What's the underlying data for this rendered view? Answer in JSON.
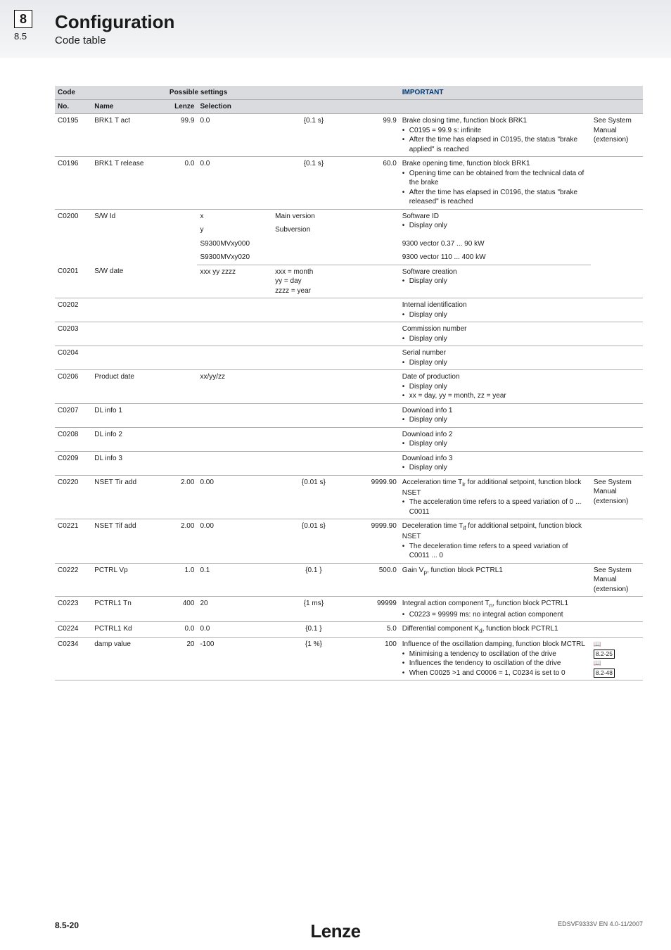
{
  "header": {
    "chapter_num": "8",
    "section_num": "8.5",
    "title": "Configuration",
    "subtitle": "Code table"
  },
  "columns": {
    "code": "Code",
    "no": "No.",
    "name": "Name",
    "possible": "Possible settings",
    "lenze": "Lenze",
    "selection": "Selection",
    "important": "IMPORTANT"
  },
  "rows": [
    {
      "no": "C0195",
      "name": "BRK1 T act",
      "lenze": "99.9",
      "s1": "0.0",
      "s2": "{0.1 s}",
      "s3": "99.9",
      "imp_lead": "Brake closing time, function block BRK1",
      "imp_items": [
        "C0195 = 99.9 s: infinite",
        "After the time has elapsed in C0195, the status \"brake applied\" is reached"
      ],
      "ref": "See System Manual (extension)"
    },
    {
      "no": "C0196",
      "name": "BRK1 T release",
      "lenze": "0.0",
      "s1": "0.0",
      "s2": "{0.1 s}",
      "s3": "60.0",
      "imp_lead": "Brake opening time, function block BRK1",
      "imp_items": [
        "Opening time can be obtained from the technical data of the brake",
        "After the time has elapsed in C0196, the status \"brake released\" is reached"
      ],
      "ref": ""
    }
  ],
  "c0200": {
    "no": "C0200",
    "name": "S/W Id",
    "line1_a": "x",
    "line1_b": "Main version",
    "line2_a": "y",
    "line2_b": "Subversion",
    "line3": "S9300MVxy000",
    "line4": "S9300MVxy020",
    "imp1": "Software ID",
    "imp1b": "Display only",
    "imp3": "9300 vector 0.37 ... 90 kW",
    "imp4": "9300 vector 110 ... 400 kW"
  },
  "c0201": {
    "no": "C0201",
    "name": "S/W date",
    "s1": "xxx yy zzzz",
    "s2": "xxx = month\nyy = day\nzzzz = year",
    "imp": "Software creation",
    "impb": "Display only"
  },
  "simple": [
    {
      "no": "C0202",
      "imp": "Internal identification",
      "impb": "Display only"
    },
    {
      "no": "C0203",
      "imp": "Commission number",
      "impb": "Display only"
    },
    {
      "no": "C0204",
      "imp": "Serial number",
      "impb": "Display only"
    }
  ],
  "c0206": {
    "no": "C0206",
    "name": "Product date",
    "s1": "xx/yy/zz",
    "imp": "Date of production",
    "imp_items": [
      "Display only",
      "xx = day, yy = month, zz = year"
    ]
  },
  "dlinfo": [
    {
      "no": "C0207",
      "name": "DL info 1",
      "imp": "Download info 1",
      "impb": "Display only"
    },
    {
      "no": "C0208",
      "name": "DL info 2",
      "imp": "Download info 2",
      "impb": "Display only"
    },
    {
      "no": "C0209",
      "name": "DL info 3",
      "imp": "Download info 3",
      "impb": "Display only"
    }
  ],
  "c0220": {
    "no": "C0220",
    "name": "NSET Tir add",
    "lenze": "2.00",
    "s1": "0.00",
    "s2": "{0.01 s}",
    "s3": "9999.90",
    "imp": "Acceleration time T",
    "imp_sub": "ir",
    "imp_tail": " for additional setpoint, function block NSET",
    "imp_items": [
      "The acceleration time refers to a speed variation of 0 ... C0011"
    ],
    "ref": "See System Manual (extension)"
  },
  "c0221": {
    "no": "C0221",
    "name": "NSET Tif add",
    "lenze": "2.00",
    "s1": "0.00",
    "s2": "{0.01 s}",
    "s3": "9999.90",
    "imp": "Deceleration time T",
    "imp_sub": "if",
    "imp_tail": " for additional setpoint, function block NSET",
    "imp_items": [
      "The deceleration time refers to a speed variation of C0011 ... 0"
    ]
  },
  "c0222": {
    "no": "C0222",
    "name": "PCTRL Vp",
    "lenze": "1.0",
    "s1": "0.1",
    "s2": "{0.1 }",
    "s3": "500.0",
    "imp": "Gain V",
    "imp_sub": "p",
    "imp_tail": ", function block PCTRL1",
    "ref": "See System Manual (extension)"
  },
  "c0223": {
    "no": "C0223",
    "name": "PCTRL1 Tn",
    "lenze": "400",
    "s1": "20",
    "s2": "{1 ms}",
    "s3": "99999",
    "imp": "Integral action component T",
    "imp_sub": "n",
    "imp_tail": ", function block PCTRL1",
    "imp_items": [
      "C0223 = 99999 ms: no integral action component"
    ]
  },
  "c0224": {
    "no": "C0224",
    "name": "PCTRL1 Kd",
    "lenze": "0.0",
    "s1": "0.0",
    "s2": "{0.1 }",
    "s3": "5.0",
    "imp": "Differential component K",
    "imp_sub": "d",
    "imp_tail": ", function block PCTRL1"
  },
  "c0234": {
    "no": "C0234",
    "name": "damp value",
    "lenze": "20",
    "s1": "-100",
    "s2": "{1 %}",
    "s3": "100",
    "imp": "Influence of the oscillation damping, function block MCTRL",
    "imp_items": [
      "Minimising a tendency to oscillation of the drive",
      "Influences the tendency to oscillation of the drive",
      "When C0025 >1 and C0006 = 1, C0234 is set to 0"
    ],
    "ref1": "8.2-25",
    "ref2": "8.2-48"
  },
  "footer": {
    "page": "8.5-20",
    "logo": "Lenze",
    "docid": "EDSVF9333V  EN  4.0-11/2007"
  }
}
